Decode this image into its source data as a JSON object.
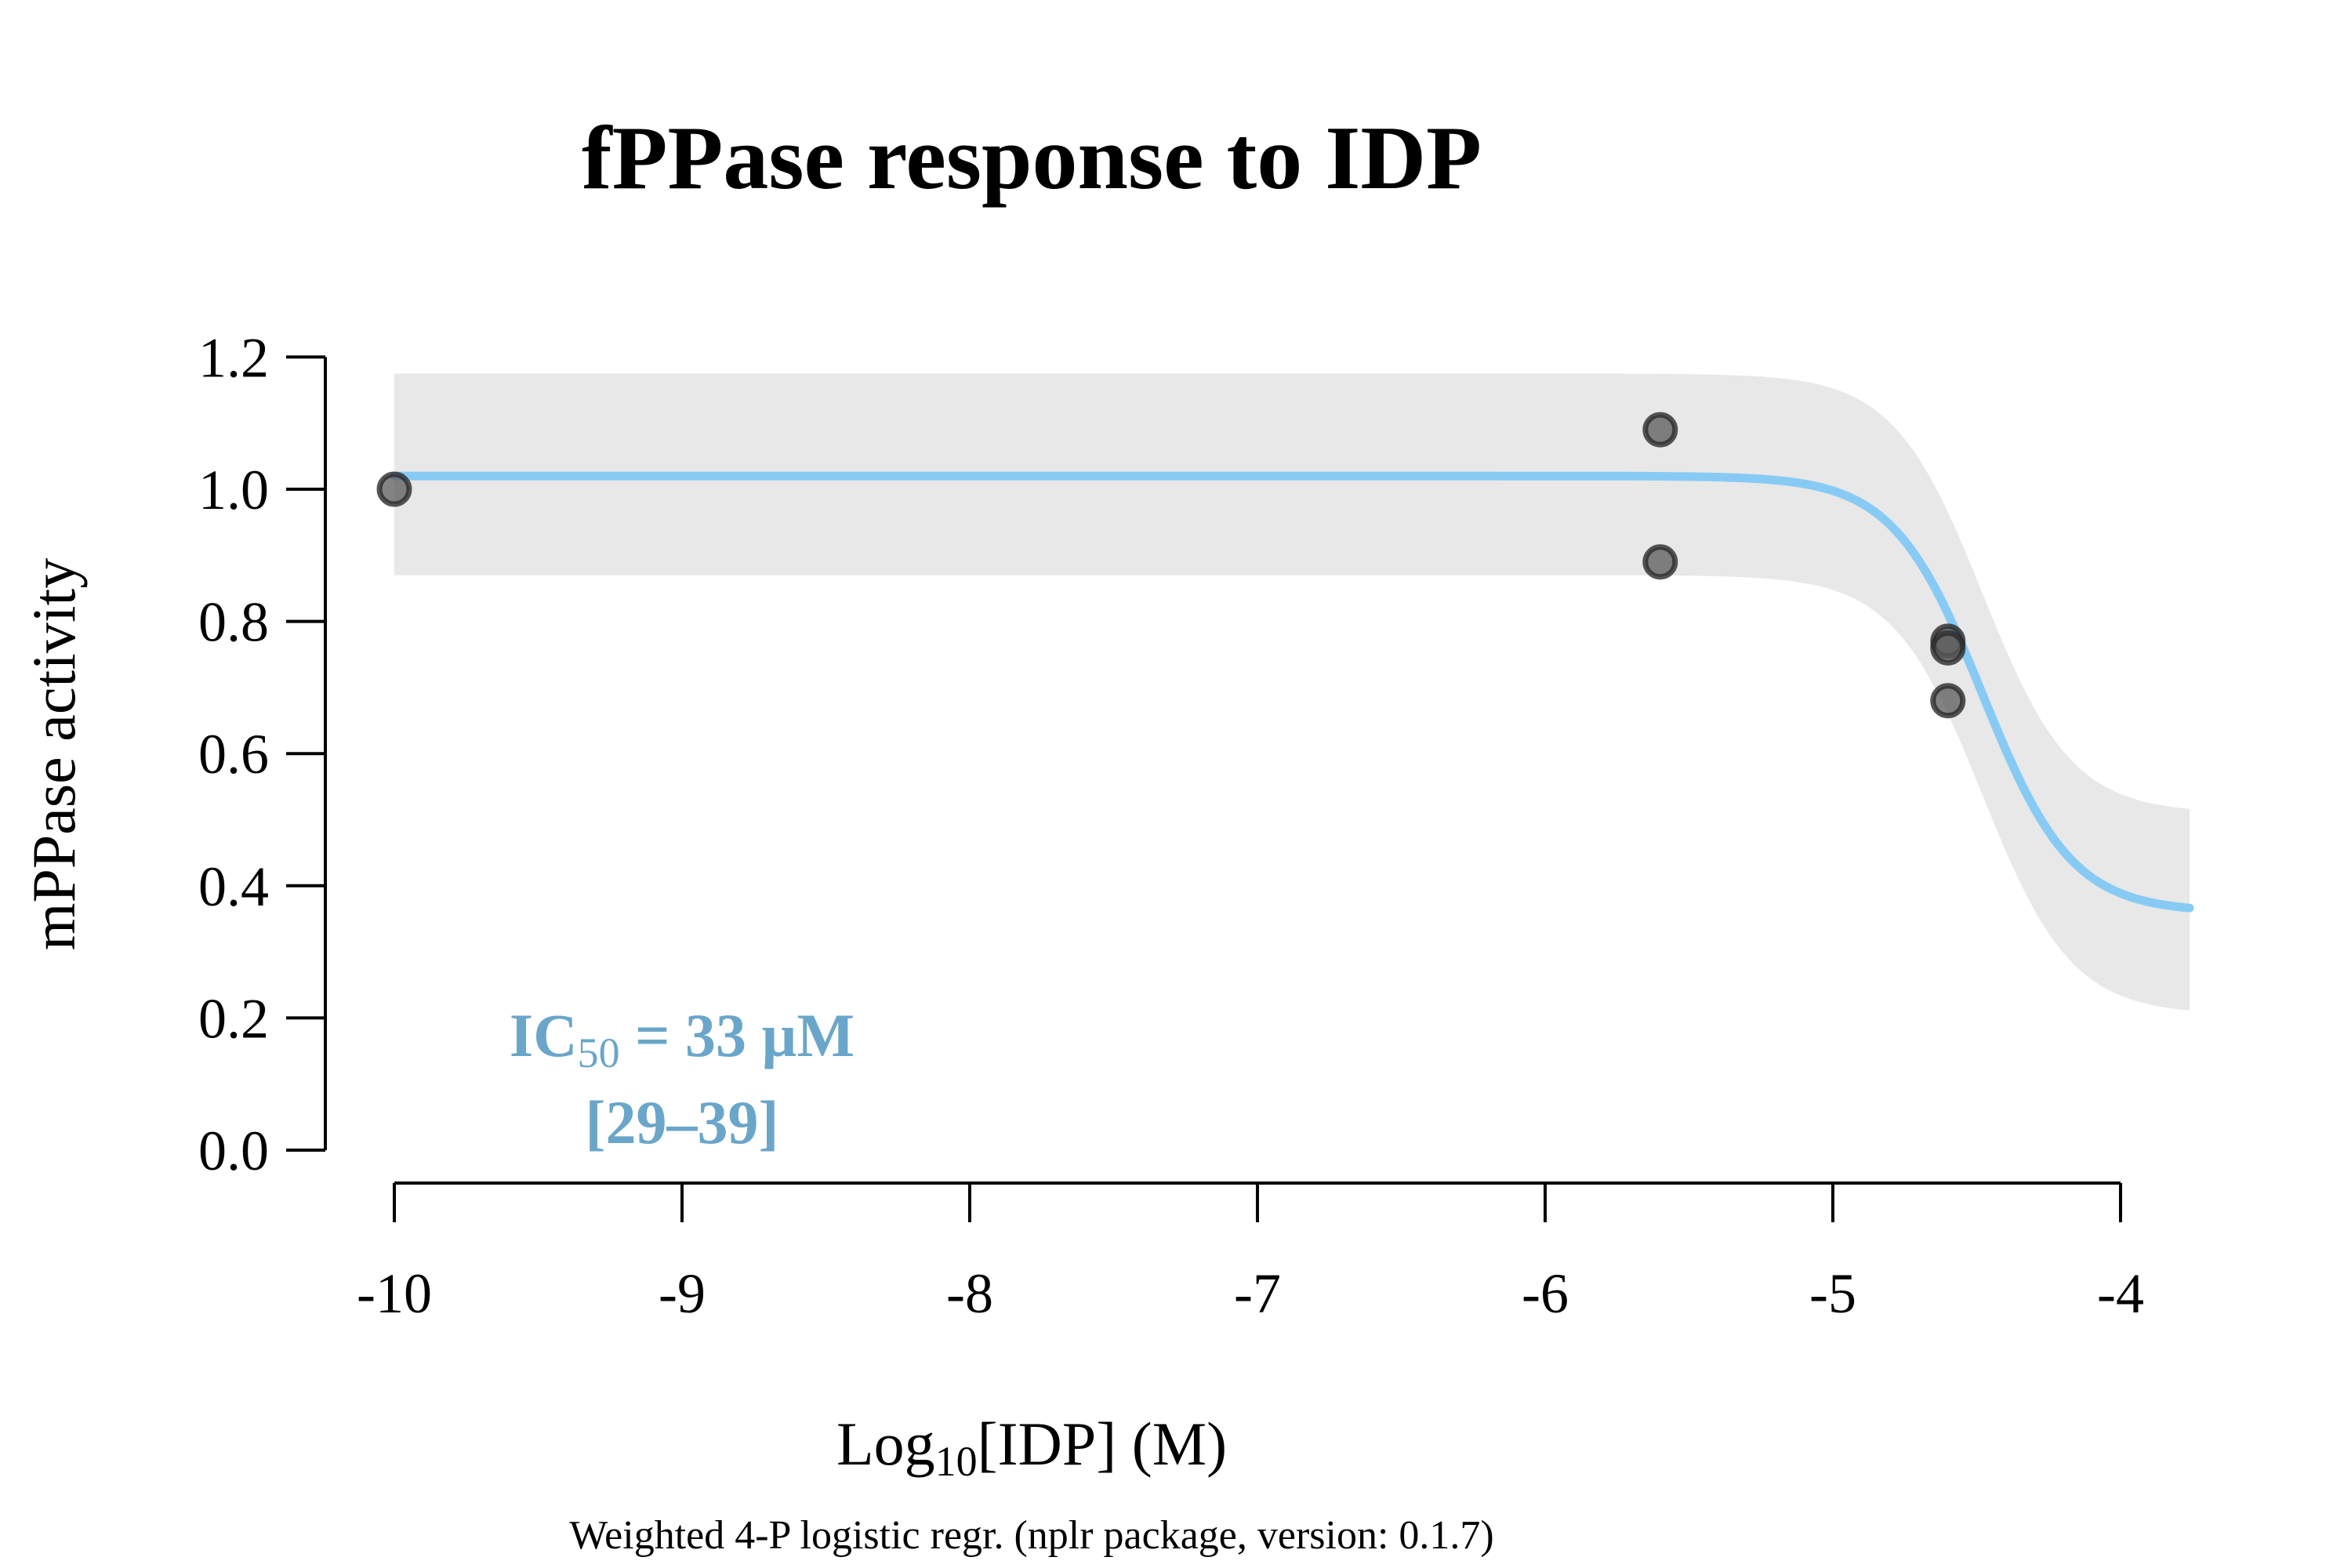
{
  "chart_data": {
    "type": "scatter",
    "title": "fPPase response to IDP",
    "xlabel": {
      "prefix": "Log",
      "subscript": "10",
      "suffix": "[IDP] (M)"
    },
    "ylabel": "mPPase activity",
    "caption": "Weighted 4-P logistic regr. (nplr package, version: 0.1.7)",
    "xlim": [
      -10,
      -3.76
    ],
    "ylim": [
      0,
      1.2
    ],
    "x_ticks": [
      -10,
      -9,
      -8,
      -7,
      -6,
      -5,
      -4
    ],
    "x_tick_labels": [
      "-10",
      "-9",
      "-8",
      "-7",
      "-6",
      "-5",
      "-4"
    ],
    "y_ticks": [
      0,
      0.2,
      0.4,
      0.6,
      0.8,
      1.0,
      1.2
    ],
    "y_tick_labels": [
      "0.0",
      "0.2",
      "0.4",
      "0.6",
      "0.8",
      "1.0",
      "1.2"
    ],
    "grid": false,
    "points": [
      {
        "x": -10,
        "y": 1.0
      },
      {
        "x": -5.6,
        "y": 1.09
      },
      {
        "x": -5.6,
        "y": 0.89
      },
      {
        "x": -4.6,
        "y": 0.77
      },
      {
        "x": -4.6,
        "y": 0.76
      },
      {
        "x": -4.6,
        "y": 0.68
      }
    ],
    "fit": {
      "model": "4-parameter logistic",
      "top": 1.02,
      "bottom": 0.36,
      "log_ic50": -4.48,
      "hill_slope": 2.8,
      "confidence_band": {
        "upper_top": 1.175,
        "upper_bottom": 0.51,
        "lower_top": 0.87,
        "lower_bottom": 0.205
      }
    },
    "colors": {
      "curve": "#87cbf5",
      "band": "#e8e8e8",
      "points": "#5a5a5a",
      "annotation": "#6aa6c9"
    },
    "annotation": {
      "ic50_label": "IC",
      "ic50_subscript": "50",
      "ic50_value": " = 33 µM",
      "ic50_ci": "[29–39]"
    }
  }
}
